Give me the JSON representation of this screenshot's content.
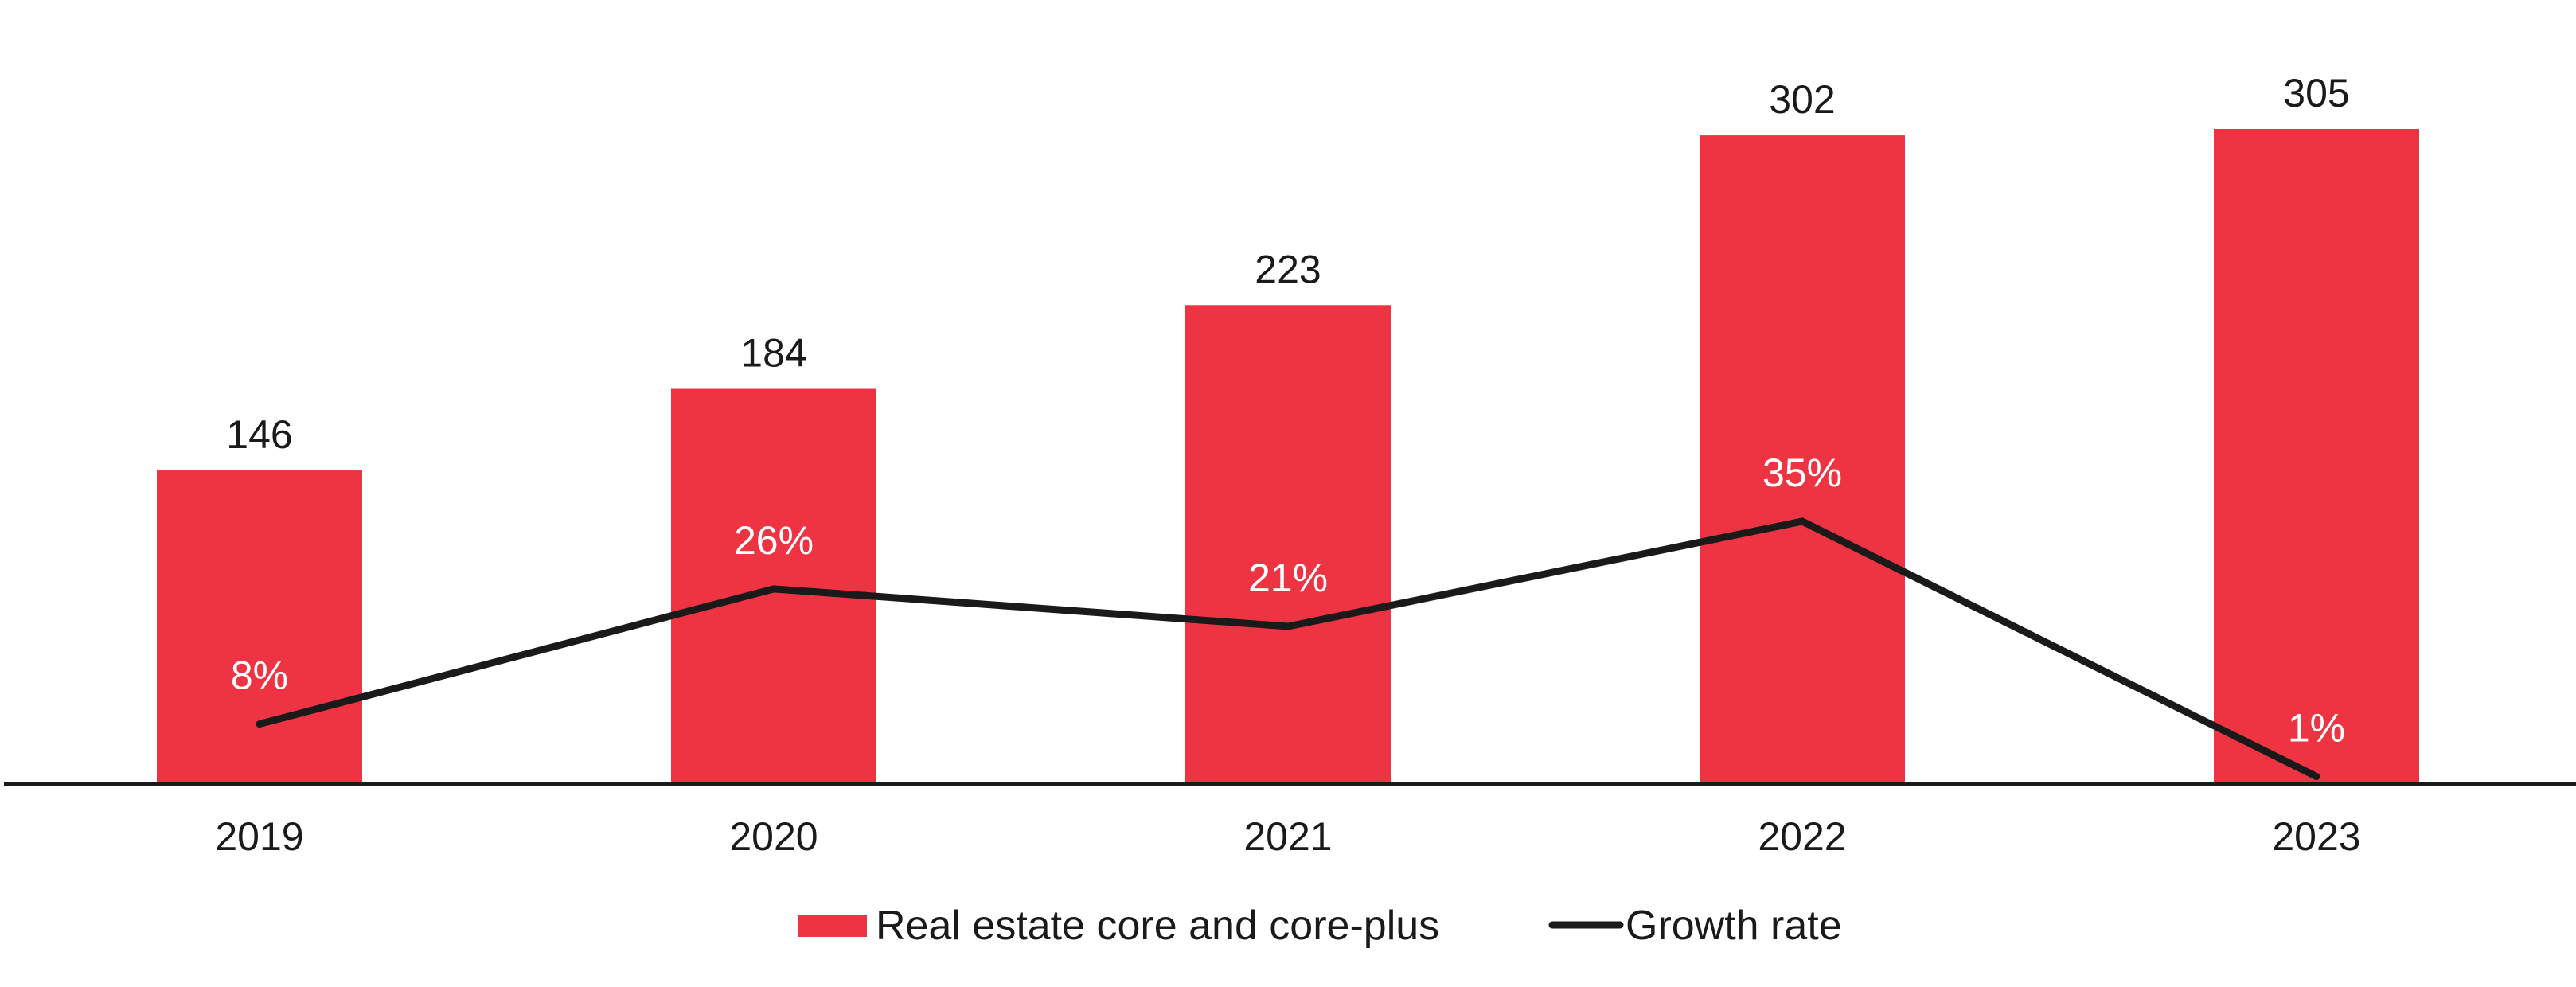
{
  "chart_data": {
    "type": "bar",
    "title": "",
    "xlabel": "",
    "ylabel": "",
    "categories": [
      "2019",
      "2020",
      "2021",
      "2022",
      "2023"
    ],
    "series": [
      {
        "name": "Real estate core and core-plus",
        "type": "bar",
        "color": "#EE3342",
        "values": [
          146,
          184,
          223,
          302,
          305
        ],
        "labels": [
          "146",
          "184",
          "223",
          "302",
          "305"
        ]
      },
      {
        "name": "Growth rate",
        "type": "line",
        "color": "#1a1a1a",
        "values": [
          8,
          26,
          21,
          35,
          1
        ],
        "unit": "%",
        "labels": [
          "8%",
          "26%",
          "21%",
          "35%",
          "1%"
        ]
      }
    ],
    "ylim": [
      0,
      305
    ],
    "growth_ylim": [
      0,
      35
    ],
    "grid": false,
    "legend": {
      "position": "bottom-center",
      "entries": [
        {
          "label": "Real estate core and core-plus",
          "marker": "square",
          "color": "#EE3342"
        },
        {
          "label": "Growth rate",
          "marker": "line",
          "color": "#1a1a1a"
        }
      ]
    }
  },
  "colors": {
    "bar": "#EE3342",
    "line": "#1a1a1a",
    "axis": "#1a1a1a",
    "text": "#1a1a1a",
    "growth_text": "#ffffff"
  }
}
